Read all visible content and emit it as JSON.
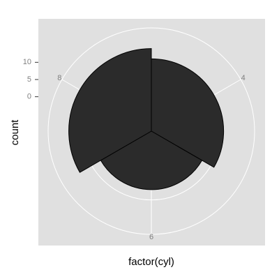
{
  "chart_data": {
    "type": "bar",
    "coord": "polar",
    "xlabel": "factor(cyl)",
    "ylabel": "count",
    "categories": [
      "4",
      "6",
      "8"
    ],
    "values": [
      11,
      7,
      14
    ],
    "y_ticks": [
      "0",
      "5",
      "10"
    ],
    "y_tick_values": [
      0,
      5,
      10
    ],
    "ylim": [
      -10,
      20
    ],
    "grid": true,
    "colors": {
      "panel": "#e0e0e0",
      "grid": "#ffffff",
      "bar_fill": "#2b2b2b",
      "bar_stroke": "#000000",
      "tick_text": "#7f7f7f"
    }
  }
}
